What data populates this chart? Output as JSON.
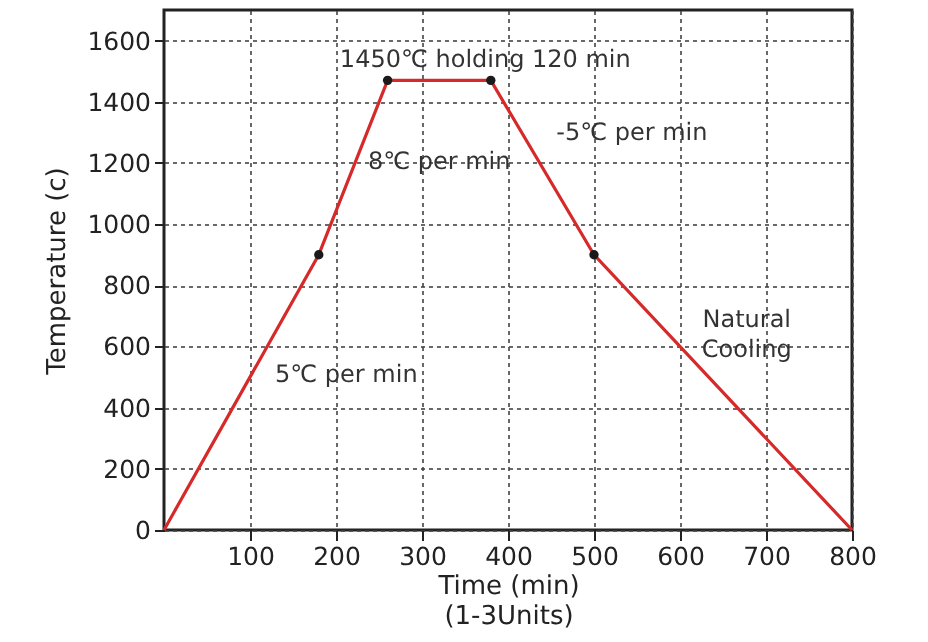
{
  "chart_data": {
    "type": "line",
    "xlabel": "Time  (min)\n(1-3Units)",
    "ylabel": "Temperature  (c)",
    "series": [
      {
        "color": "#d62a2a",
        "x": [
          0,
          180,
          260,
          380,
          500,
          800
        ],
        "values": [
          0,
          900,
          1470,
          1470,
          900,
          0
        ],
        "marker": "none"
      },
      {
        "type": "scatter",
        "color": "#1a1a1a",
        "x": [
          180,
          260,
          380,
          500
        ],
        "values": [
          900,
          1470,
          1470,
          900
        ],
        "marker": "circle"
      }
    ],
    "xlim": [
      0,
      800
    ],
    "ylim": [
      0,
      1700
    ],
    "xticks": [
      100,
      200,
      300,
      400,
      500,
      600,
      700,
      800
    ],
    "yticks": [
      0,
      200,
      400,
      600,
      800,
      1000,
      1200,
      1400,
      1600
    ],
    "grid": true,
    "annotations": [
      "1450℃ holding 120 min",
      "8℃ per min",
      "-5℃ per min",
      "5℃ per min",
      "Natural\nCooling"
    ]
  }
}
